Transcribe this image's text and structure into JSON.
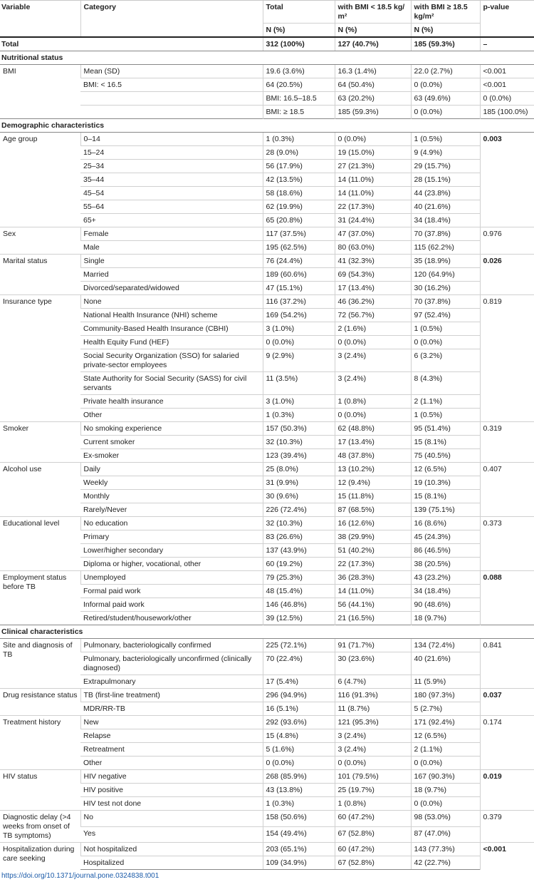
{
  "header": {
    "variable": "Variable",
    "category": "Category",
    "total": "Total",
    "bmi_low": "with BMI < 18.5 kg/ m²",
    "bmi_high": "with BMI ≥ 18.5 kg/m²",
    "pvalue": "p-value",
    "n_pct": "N (%)"
  },
  "total_row": {
    "label": "Total",
    "total": "312 (100%)",
    "bmi_low": "127 (40.7%)",
    "bmi_high": "185 (59.3%)",
    "pvalue": "–"
  },
  "sections": [
    {
      "title": "Nutritional status",
      "vars": [
        {
          "name": "BMI",
          "rows": [
            {
              "cat": "Mean (SD)",
              "total": "19.6 (3.6%)",
              "low": "16.3 (1.4%)",
              "high": "22.0 (2.7%)",
              "p": "<0.001",
              "bold": false
            },
            {
              "cat": "BMI: < 16.5",
              "total": "64 (20.5%)",
              "low": "64 (50.4%)",
              "high": "0 (0.0%)",
              "p": "<0.001",
              "bold": false
            },
            {
              "cat": "",
              "total": "BMI: 16.5–18.5",
              "low": "63 (20.2%)",
              "high": "63 (49.6%)",
              "p": "0 (0.0%)",
              "bold": false
            },
            {
              "cat": "",
              "total": "BMI: ≥ 18.5",
              "low": "185 (59.3%)",
              "high": "0 (0.0%)",
              "p": "185 (100.0%)",
              "bold": false
            }
          ]
        }
      ]
    },
    {
      "title": "Demographic characteristics",
      "vars": [
        {
          "name": "Age group",
          "p": "0.003",
          "bold": true,
          "rows": [
            {
              "cat": "0–14",
              "total": "1 (0.3%)",
              "low": "0 (0.0%)",
              "high": "1 (0.5%)"
            },
            {
              "cat": "15–24",
              "total": "28 (9.0%)",
              "low": "19 (15.0%)",
              "high": "9 (4.9%)"
            },
            {
              "cat": "25–34",
              "total": "56 (17.9%)",
              "low": "27 (21.3%)",
              "high": "29 (15.7%)"
            },
            {
              "cat": "35–44",
              "total": "42 (13.5%)",
              "low": "14 (11.0%)",
              "high": "28 (15.1%)"
            },
            {
              "cat": "45–54",
              "total": "58 (18.6%)",
              "low": "14 (11.0%)",
              "high": "44 (23.8%)"
            },
            {
              "cat": "55–64",
              "total": "62 (19.9%)",
              "low": "22 (17.3%)",
              "high": "40 (21.6%)"
            },
            {
              "cat": "65+",
              "total": "65 (20.8%)",
              "low": "31 (24.4%)",
              "high": "34 (18.4%)"
            }
          ]
        },
        {
          "name": "Sex",
          "p": "0.976",
          "bold": false,
          "rows": [
            {
              "cat": "Female",
              "total": "117 (37.5%)",
              "low": "47 (37.0%)",
              "high": "70 (37.8%)"
            },
            {
              "cat": "Male",
              "total": "195 (62.5%)",
              "low": "80 (63.0%)",
              "high": "115 (62.2%)"
            }
          ]
        },
        {
          "name": "Marital status",
          "p": "0.026",
          "bold": true,
          "rows": [
            {
              "cat": "Single",
              "total": "76 (24.4%)",
              "low": "41 (32.3%)",
              "high": "35 (18.9%)"
            },
            {
              "cat": "Married",
              "total": "189 (60.6%)",
              "low": "69 (54.3%)",
              "high": "120 (64.9%)"
            },
            {
              "cat": "Divorced/separated/widowed",
              "total": "47 (15.1%)",
              "low": "17 (13.4%)",
              "high": "30 (16.2%)"
            }
          ]
        },
        {
          "name": "Insurance type",
          "p": "0.819",
          "bold": false,
          "rows": [
            {
              "cat": "None",
              "total": "116 (37.2%)",
              "low": "46 (36.2%)",
              "high": "70 (37.8%)"
            },
            {
              "cat": "National Health Insurance (NHI) scheme",
              "total": "169 (54.2%)",
              "low": "72 (56.7%)",
              "high": "97 (52.4%)"
            },
            {
              "cat": "Community-Based Health Insurance (CBHI)",
              "total": "3 (1.0%)",
              "low": "2 (1.6%)",
              "high": "1 (0.5%)"
            },
            {
              "cat": "Health Equity Fund (HEF)",
              "total": "0 (0.0%)",
              "low": "0 (0.0%)",
              "high": "0 (0.0%)"
            },
            {
              "cat": "Social Security Organization (SSO) for salaried private-sector employees",
              "total": "9 (2.9%)",
              "low": "3 (2.4%)",
              "high": "6 (3.2%)"
            },
            {
              "cat": "State Authority for Social Security (SASS) for civil servants",
              "total": "11 (3.5%)",
              "low": "3 (2.4%)",
              "high": "8 (4.3%)"
            },
            {
              "cat": "Private health insurance",
              "total": "3 (1.0%)",
              "low": "1 (0.8%)",
              "high": "2 (1.1%)"
            },
            {
              "cat": "Other",
              "total": "1 (0.3%)",
              "low": "0 (0.0%)",
              "high": "1 (0.5%)"
            }
          ]
        },
        {
          "name": "Smoker",
          "p": "0.319",
          "bold": false,
          "rows": [
            {
              "cat": "No smoking experience",
              "total": "157 (50.3%)",
              "low": "62 (48.8%)",
              "high": "95 (51.4%)"
            },
            {
              "cat": "Current smoker",
              "total": "32 (10.3%)",
              "low": "17 (13.4%)",
              "high": "15 (8.1%)"
            },
            {
              "cat": "Ex-smoker",
              "total": "123 (39.4%)",
              "low": "48 (37.8%)",
              "high": "75 (40.5%)"
            }
          ]
        },
        {
          "name": "Alcohol use",
          "p": "0.407",
          "bold": false,
          "rows": [
            {
              "cat": "Daily",
              "total": "25 (8.0%)",
              "low": "13 (10.2%)",
              "high": "12 (6.5%)"
            },
            {
              "cat": "Weekly",
              "total": "31 (9.9%)",
              "low": "12 (9.4%)",
              "high": "19 (10.3%)"
            },
            {
              "cat": "Monthly",
              "total": "30 (9.6%)",
              "low": "15 (11.8%)",
              "high": "15 (8.1%)"
            },
            {
              "cat": "Rarely/Never",
              "total": "226 (72.4%)",
              "low": "87 (68.5%)",
              "high": "139 (75.1%)"
            }
          ]
        },
        {
          "name": "Educational level",
          "p": "0.373",
          "bold": false,
          "rows": [
            {
              "cat": "No education",
              "total": "32 (10.3%)",
              "low": "16 (12.6%)",
              "high": "16 (8.6%)"
            },
            {
              "cat": "Primary",
              "total": "83 (26.6%)",
              "low": "38 (29.9%)",
              "high": "45 (24.3%)"
            },
            {
              "cat": "Lower/higher secondary",
              "total": "137 (43.9%)",
              "low": "51 (40.2%)",
              "high": "86 (46.5%)"
            },
            {
              "cat": "Diploma or higher, vocational, other",
              "total": "60 (19.2%)",
              "low": "22 (17.3%)",
              "high": "38 (20.5%)"
            }
          ]
        },
        {
          "name": "Employment status before TB",
          "p": "0.088",
          "bold": true,
          "rows": [
            {
              "cat": "Unemployed",
              "total": "79 (25.3%)",
              "low": "36 (28.3%)",
              "high": "43 (23.2%)"
            },
            {
              "cat": "Formal paid work",
              "total": "48 (15.4%)",
              "low": "14 (11.0%)",
              "high": "34 (18.4%)"
            },
            {
              "cat": "Informal paid work",
              "total": "146 (46.8%)",
              "low": "56 (44.1%)",
              "high": "90 (48.6%)"
            },
            {
              "cat": "Retired/student/housework/other",
              "total": "39 (12.5%)",
              "low": "21 (16.5%)",
              "high": "18 (9.7%)"
            }
          ]
        }
      ]
    },
    {
      "title": "Clinical characteristics",
      "vars": [
        {
          "name": "Site and diagnosis of TB",
          "p": "0.841",
          "bold": false,
          "rows": [
            {
              "cat": "Pulmonary, bacteriologically confirmed",
              "total": "225 (72.1%)",
              "low": "91 (71.7%)",
              "high": "134 (72.4%)"
            },
            {
              "cat": "Pulmonary, bacteriologically unconfirmed (clinically diagnosed)",
              "total": "70 (22.4%)",
              "low": "30 (23.6%)",
              "high": "40 (21.6%)"
            },
            {
              "cat": "Extrapulmonary",
              "total": "17 (5.4%)",
              "low": "6 (4.7%)",
              "high": "11 (5.9%)"
            }
          ]
        },
        {
          "name": "Drug resistance status",
          "p": "0.037",
          "bold": true,
          "rows": [
            {
              "cat": "TB (first-line treatment)",
              "total": "296 (94.9%)",
              "low": "116 (91.3%)",
              "high": "180 (97.3%)"
            },
            {
              "cat": "MDR/RR-TB",
              "total": "16 (5.1%)",
              "low": "11 (8.7%)",
              "high": "5 (2.7%)"
            }
          ]
        },
        {
          "name": "Treatment history",
          "p": "0.174",
          "bold": false,
          "rows": [
            {
              "cat": "New",
              "total": "292 (93.6%)",
              "low": "121 (95.3%)",
              "high": "171 (92.4%)"
            },
            {
              "cat": "Relapse",
              "total": "15 (4.8%)",
              "low": "3 (2.4%)",
              "high": "12 (6.5%)"
            },
            {
              "cat": "Retreatment",
              "total": "5 (1.6%)",
              "low": "3 (2.4%)",
              "high": "2 (1.1%)"
            },
            {
              "cat": "Other",
              "total": "0 (0.0%)",
              "low": "0 (0.0%)",
              "high": "0 (0.0%)"
            }
          ]
        },
        {
          "name": "HIV status",
          "p": "0.019",
          "bold": true,
          "rows": [
            {
              "cat": "HIV negative",
              "total": "268 (85.9%)",
              "low": "101 (79.5%)",
              "high": "167 (90.3%)"
            },
            {
              "cat": "HIV positive",
              "total": "43 (13.8%)",
              "low": "25 (19.7%)",
              "high": "18 (9.7%)"
            },
            {
              "cat": "HIV test not done",
              "total": "1 (0.3%)",
              "low": "1 (0.8%)",
              "high": "0 (0.0%)"
            }
          ]
        },
        {
          "name": "Diagnostic delay (>4 weeks from onset of TB symptoms)",
          "p": "0.379",
          "bold": false,
          "rows": [
            {
              "cat": "No",
              "total": "158 (50.6%)",
              "low": "60 (47.2%)",
              "high": "98 (53.0%)"
            },
            {
              "cat": "Yes",
              "total": "154 (49.4%)",
              "low": "67 (52.8%)",
              "high": "87 (47.0%)"
            }
          ]
        },
        {
          "name": "Hospitalization during care seeking",
          "p": "<0.001",
          "bold": true,
          "rows": [
            {
              "cat": "Not hospitalized",
              "total": "203 (65.1%)",
              "low": "60 (47.2%)",
              "high": "143 (77.3%)"
            },
            {
              "cat": "Hospitalized",
              "total": "109 (34.9%)",
              "low": "67 (52.8%)",
              "high": "42 (22.7%)"
            }
          ]
        }
      ]
    }
  ],
  "doi": "https://doi.org/10.1371/journal.pone.0324838.t001"
}
